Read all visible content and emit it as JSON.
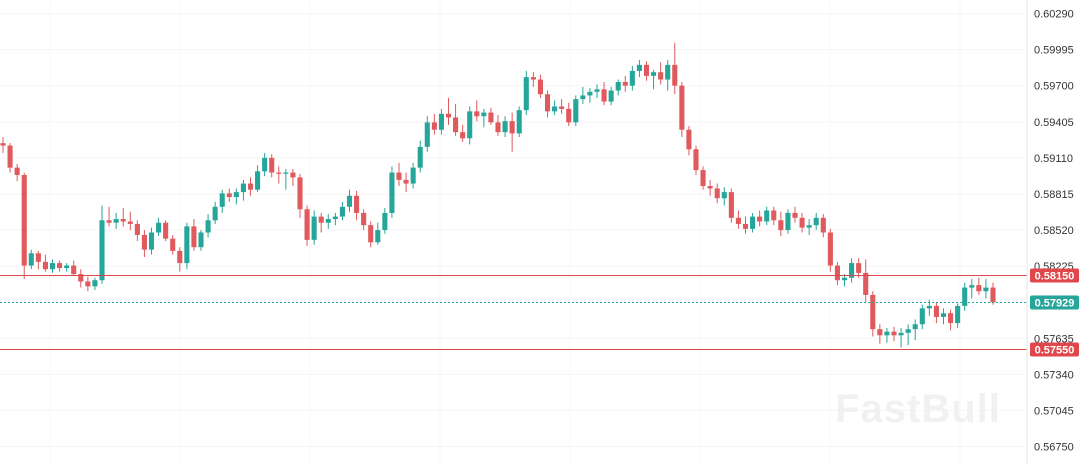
{
  "chart_data": {
    "type": "candlestick",
    "ylim": [
      0.566,
      0.604
    ],
    "y_ticks": [
      "0.60290",
      "0.59995",
      "0.59700",
      "0.59405",
      "0.59110",
      "0.58815",
      "0.58520",
      "0.58225",
      "0.57635",
      "0.57340",
      "0.57045",
      "0.56750"
    ],
    "levels": [
      {
        "label": "0.58150",
        "value": 0.5815,
        "style": "solid",
        "color": "#e0474c"
      },
      {
        "label": "0.57929",
        "value": 0.57929,
        "style": "dotted",
        "color": "#26a69a"
      },
      {
        "label": "0.57550",
        "value": 0.5755,
        "style": "solid",
        "color": "#e0474c"
      }
    ],
    "watermark": "FastBull",
    "up_color": "#26a69a",
    "down_color": "#e0595c",
    "candles": [
      [
        0.5923,
        0.5928,
        0.5915,
        0.5921
      ],
      [
        0.5921,
        0.5923,
        0.5899,
        0.5903
      ],
      [
        0.5903,
        0.5906,
        0.5892,
        0.5897
      ],
      [
        0.5897,
        0.5899,
        0.5812,
        0.5823
      ],
      [
        0.5823,
        0.5836,
        0.582,
        0.5833
      ],
      [
        0.5833,
        0.5835,
        0.582,
        0.5826
      ],
      [
        0.5826,
        0.5832,
        0.5818,
        0.582
      ],
      [
        0.582,
        0.5828,
        0.5817,
        0.5825
      ],
      [
        0.5825,
        0.5827,
        0.5818,
        0.5821
      ],
      [
        0.5821,
        0.5825,
        0.5818,
        0.5823
      ],
      [
        0.5823,
        0.5827,
        0.5815,
        0.5816
      ],
      [
        0.5816,
        0.582,
        0.5805,
        0.581
      ],
      [
        0.581,
        0.5814,
        0.5802,
        0.5806
      ],
      [
        0.5806,
        0.5813,
        0.5803,
        0.5811
      ],
      [
        0.5811,
        0.5872,
        0.5808,
        0.586
      ],
      [
        0.586,
        0.5871,
        0.5855,
        0.5858
      ],
      [
        0.5858,
        0.5866,
        0.5853,
        0.5861
      ],
      [
        0.5861,
        0.587,
        0.5855,
        0.5859
      ],
      [
        0.5859,
        0.5867,
        0.5852,
        0.5857
      ],
      [
        0.5857,
        0.586,
        0.5843,
        0.5848
      ],
      [
        0.5848,
        0.5852,
        0.583,
        0.5836
      ],
      [
        0.5836,
        0.5854,
        0.5832,
        0.585
      ],
      [
        0.585,
        0.5862,
        0.5847,
        0.5858
      ],
      [
        0.5858,
        0.586,
        0.5843,
        0.5845
      ],
      [
        0.5845,
        0.5848,
        0.5832,
        0.5835
      ],
      [
        0.5835,
        0.5838,
        0.5818,
        0.5825
      ],
      [
        0.5825,
        0.5858,
        0.582,
        0.5855
      ],
      [
        0.5855,
        0.5861,
        0.5835,
        0.5838
      ],
      [
        0.5838,
        0.5852,
        0.5835,
        0.585
      ],
      [
        0.585,
        0.5865,
        0.5846,
        0.586
      ],
      [
        0.586,
        0.5875,
        0.5857,
        0.5871
      ],
      [
        0.5871,
        0.5885,
        0.5866,
        0.5882
      ],
      [
        0.5882,
        0.5886,
        0.5875,
        0.5879
      ],
      [
        0.5879,
        0.5886,
        0.5873,
        0.5883
      ],
      [
        0.5883,
        0.5893,
        0.5876,
        0.589
      ],
      [
        0.589,
        0.5895,
        0.588,
        0.5885
      ],
      [
        0.5885,
        0.5905,
        0.5883,
        0.59
      ],
      [
        0.59,
        0.5915,
        0.5896,
        0.5911
      ],
      [
        0.5911,
        0.5914,
        0.5895,
        0.5899
      ],
      [
        0.5899,
        0.5904,
        0.589,
        0.5898
      ],
      [
        0.5898,
        0.5902,
        0.5885,
        0.5899
      ],
      [
        0.5899,
        0.5902,
        0.5888,
        0.5895
      ],
      [
        0.5895,
        0.5898,
        0.5862,
        0.5869
      ],
      [
        0.5869,
        0.5872,
        0.5839,
        0.5844
      ],
      [
        0.5844,
        0.5868,
        0.584,
        0.5863
      ],
      [
        0.5863,
        0.5866,
        0.585,
        0.5858
      ],
      [
        0.5858,
        0.5865,
        0.5853,
        0.5861
      ],
      [
        0.5861,
        0.5866,
        0.5856,
        0.5863
      ],
      [
        0.5863,
        0.5875,
        0.586,
        0.5871
      ],
      [
        0.5871,
        0.5885,
        0.5867,
        0.588
      ],
      [
        0.588,
        0.5884,
        0.586,
        0.5866
      ],
      [
        0.5866,
        0.5869,
        0.5852,
        0.5856
      ],
      [
        0.5856,
        0.5859,
        0.5838,
        0.5842
      ],
      [
        0.5842,
        0.5858,
        0.584,
        0.5852
      ],
      [
        0.5852,
        0.587,
        0.5849,
        0.5866
      ],
      [
        0.5866,
        0.5904,
        0.5862,
        0.5899
      ],
      [
        0.5899,
        0.5907,
        0.5888,
        0.5893
      ],
      [
        0.5893,
        0.5899,
        0.5883,
        0.589
      ],
      [
        0.589,
        0.5907,
        0.5886,
        0.5903
      ],
      [
        0.5903,
        0.5925,
        0.5899,
        0.592
      ],
      [
        0.592,
        0.5945,
        0.5916,
        0.594
      ],
      [
        0.594,
        0.5947,
        0.593,
        0.5934
      ],
      [
        0.5934,
        0.5951,
        0.593,
        0.5947
      ],
      [
        0.5947,
        0.596,
        0.5938,
        0.5944
      ],
      [
        0.5944,
        0.5955,
        0.5929,
        0.5932
      ],
      [
        0.5932,
        0.5938,
        0.5924,
        0.5927
      ],
      [
        0.5927,
        0.5953,
        0.5922,
        0.5949
      ],
      [
        0.5949,
        0.5958,
        0.5941,
        0.5945
      ],
      [
        0.5945,
        0.5951,
        0.5936,
        0.5948
      ],
      [
        0.5948,
        0.5952,
        0.5938,
        0.594
      ],
      [
        0.594,
        0.5946,
        0.5929,
        0.5932
      ],
      [
        0.5932,
        0.5945,
        0.5928,
        0.5941
      ],
      [
        0.5941,
        0.5948,
        0.5916,
        0.5931
      ],
      [
        0.5931,
        0.5953,
        0.5928,
        0.595
      ],
      [
        0.595,
        0.5982,
        0.5946,
        0.5977
      ],
      [
        0.5977,
        0.5981,
        0.5969,
        0.5975
      ],
      [
        0.5975,
        0.5979,
        0.596,
        0.5963
      ],
      [
        0.5963,
        0.5966,
        0.5944,
        0.5949
      ],
      [
        0.5949,
        0.5958,
        0.5946,
        0.5953
      ],
      [
        0.5953,
        0.5959,
        0.5947,
        0.5951
      ],
      [
        0.5951,
        0.5956,
        0.5937,
        0.594
      ],
      [
        0.594,
        0.5962,
        0.5937,
        0.5959
      ],
      [
        0.5959,
        0.5969,
        0.5955,
        0.5962
      ],
      [
        0.5962,
        0.5968,
        0.5956,
        0.5965
      ],
      [
        0.5965,
        0.5971,
        0.596,
        0.5967
      ],
      [
        0.5967,
        0.5973,
        0.5954,
        0.5957
      ],
      [
        0.5957,
        0.5969,
        0.5954,
        0.5966
      ],
      [
        0.5966,
        0.5975,
        0.5962,
        0.5973
      ],
      [
        0.5973,
        0.5978,
        0.5965,
        0.597
      ],
      [
        0.597,
        0.5986,
        0.5966,
        0.5982
      ],
      [
        0.5982,
        0.5991,
        0.5977,
        0.5987
      ],
      [
        0.5987,
        0.599,
        0.5974,
        0.5978
      ],
      [
        0.5978,
        0.5983,
        0.5967,
        0.5981
      ],
      [
        0.5981,
        0.5989,
        0.5971,
        0.5975
      ],
      [
        0.5975,
        0.5991,
        0.5966,
        0.5987
      ],
      [
        0.5987,
        0.6005,
        0.5963,
        0.597
      ],
      [
        0.597,
        0.5973,
        0.5928,
        0.5934
      ],
      [
        0.5934,
        0.5937,
        0.5913,
        0.5918
      ],
      [
        0.5918,
        0.5921,
        0.5897,
        0.5901
      ],
      [
        0.5901,
        0.5904,
        0.5885,
        0.5888
      ],
      [
        0.5888,
        0.5893,
        0.588,
        0.5886
      ],
      [
        0.5886,
        0.589,
        0.5874,
        0.5878
      ],
      [
        0.5878,
        0.5887,
        0.5872,
        0.5883
      ],
      [
        0.5883,
        0.5886,
        0.5858,
        0.5862
      ],
      [
        0.5862,
        0.5868,
        0.5853,
        0.5857
      ],
      [
        0.5857,
        0.5863,
        0.5849,
        0.5853
      ],
      [
        0.5853,
        0.5866,
        0.585,
        0.5863
      ],
      [
        0.5863,
        0.5868,
        0.5855,
        0.5859
      ],
      [
        0.5859,
        0.5871,
        0.5856,
        0.5868
      ],
      [
        0.5868,
        0.5871,
        0.5856,
        0.586
      ],
      [
        0.586,
        0.5867,
        0.5847,
        0.5852
      ],
      [
        0.5852,
        0.5869,
        0.5849,
        0.5866
      ],
      [
        0.5866,
        0.5871,
        0.5858,
        0.5862
      ],
      [
        0.5862,
        0.5866,
        0.585,
        0.5854
      ],
      [
        0.5854,
        0.5861,
        0.5848,
        0.5856
      ],
      [
        0.5856,
        0.5866,
        0.5852,
        0.5862
      ],
      [
        0.5862,
        0.5865,
        0.5846,
        0.585
      ],
      [
        0.585,
        0.5853,
        0.5818,
        0.5823
      ],
      [
        0.5823,
        0.5826,
        0.5807,
        0.5811
      ],
      [
        0.5811,
        0.5816,
        0.5806,
        0.5813
      ],
      [
        0.5813,
        0.5829,
        0.5809,
        0.5825
      ],
      [
        0.5825,
        0.5829,
        0.5813,
        0.5817
      ],
      [
        0.5817,
        0.5828,
        0.5793,
        0.5799
      ],
      [
        0.5799,
        0.5802,
        0.5765,
        0.5771
      ],
      [
        0.5771,
        0.5775,
        0.5759,
        0.5766
      ],
      [
        0.5766,
        0.5772,
        0.576,
        0.5769
      ],
      [
        0.5769,
        0.5773,
        0.5761,
        0.5766
      ],
      [
        0.5766,
        0.5772,
        0.5756,
        0.5768
      ],
      [
        0.5768,
        0.5775,
        0.5758,
        0.5771
      ],
      [
        0.5771,
        0.5779,
        0.5762,
        0.5775
      ],
      [
        0.5775,
        0.5791,
        0.5771,
        0.5788
      ],
      [
        0.5788,
        0.5795,
        0.5782,
        0.579
      ],
      [
        0.579,
        0.5793,
        0.5776,
        0.5781
      ],
      [
        0.5781,
        0.5788,
        0.5775,
        0.5784
      ],
      [
        0.5784,
        0.5787,
        0.577,
        0.5776
      ],
      [
        0.5776,
        0.5792,
        0.5772,
        0.579
      ],
      [
        0.579,
        0.5809,
        0.5786,
        0.5805
      ],
      [
        0.5805,
        0.5812,
        0.5796,
        0.5807
      ],
      [
        0.5807,
        0.5813,
        0.5799,
        0.5802
      ],
      [
        0.5802,
        0.5812,
        0.5796,
        0.5805
      ],
      [
        0.5805,
        0.5809,
        0.5791,
        0.5793
      ]
    ]
  }
}
